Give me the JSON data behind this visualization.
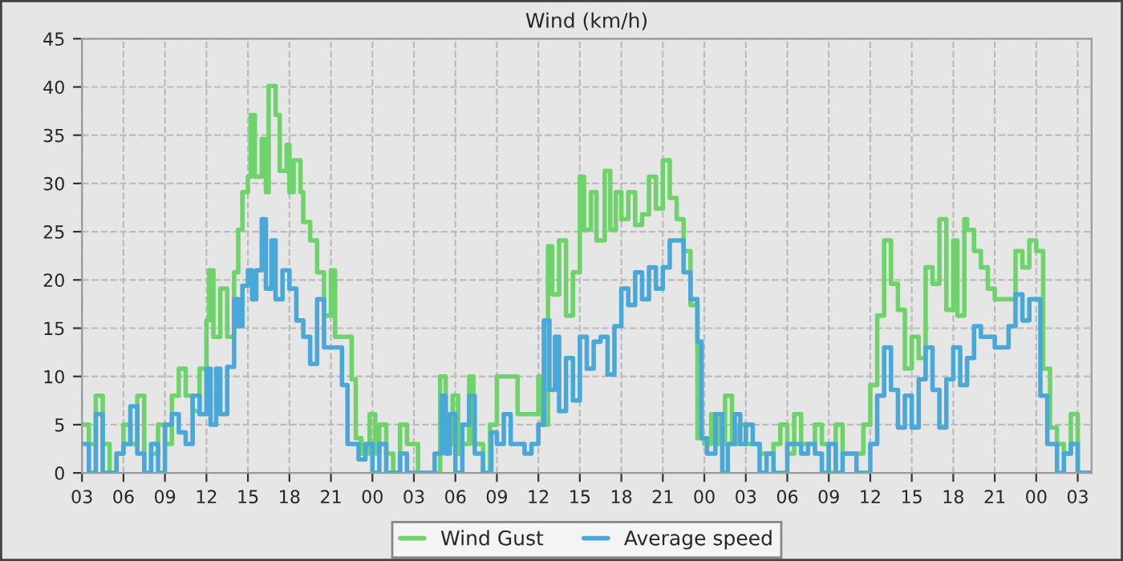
{
  "chart_data": {
    "type": "step",
    "title": "Wind (km/h)",
    "series": [
      {
        "name": "Wind Gust",
        "color": "#6dd36a",
        "x": [
          3,
          3.25,
          3.5,
          4,
          4.5,
          5,
          5.5,
          6,
          6.5,
          7,
          7.5,
          8,
          8.5,
          9,
          9.5,
          10,
          10.5,
          11,
          11.5,
          12,
          12.2,
          12.5,
          13,
          13.5,
          14,
          14.3,
          14.6,
          15,
          15.2,
          15.5,
          16,
          16.3,
          16.5,
          17,
          17.3,
          17.8,
          18,
          18.3,
          18.8,
          19,
          19.5,
          20,
          20.5,
          21,
          21.3,
          22,
          22.5,
          22.8,
          23.2,
          23.8,
          24.2,
          24.5,
          25,
          25.5,
          26,
          26.5,
          27,
          27.3,
          28.5,
          28.9,
          29.3,
          29.8,
          30.2,
          30.5,
          31,
          31.3,
          32,
          32.5,
          33,
          34,
          34.5,
          35.5,
          36,
          36.3,
          36.7,
          37,
          37.5,
          38,
          38.5,
          39,
          39.3,
          39.8,
          40.2,
          40.8,
          41.2,
          41.6,
          42,
          42.5,
          43,
          43.5,
          44,
          44.5,
          45,
          45.5,
          46,
          46.5,
          47,
          47.5,
          48,
          48.5,
          49,
          49.5,
          50,
          50.5,
          51,
          52,
          53,
          53.5,
          54,
          54.5,
          55,
          56,
          56.5,
          57,
          57.5,
          58,
          59,
          59.5,
          60,
          60.5,
          61,
          61.5,
          62,
          62.5,
          63,
          63.5,
          64,
          64.5,
          65,
          65.5,
          66,
          66.3,
          66.8,
          67,
          67.5,
          68,
          68.5,
          69,
          70,
          70.5,
          71,
          71.5,
          72,
          72.5,
          73,
          73.5,
          74,
          74.5,
          75,
          75.5,
          76
        ],
        "values": [
          5,
          5,
          3,
          8,
          3,
          0,
          2,
          5,
          3,
          8,
          0,
          2,
          5,
          3,
          8,
          10.8,
          8,
          6.4,
          10.8,
          15.8,
          21,
          14.1,
          19.1,
          14.1,
          20.8,
          25.2,
          29.1,
          30.7,
          37.1,
          30.7,
          34.6,
          29.1,
          40.1,
          37.1,
          31.3,
          34,
          29.1,
          32.4,
          29.1,
          26,
          24.1,
          20.8,
          16.3,
          21,
          14.1,
          14.1,
          9.7,
          3.6,
          2,
          6.1,
          2,
          5,
          2,
          0,
          5,
          3,
          3,
          0,
          0,
          10,
          3,
          8,
          2,
          3,
          10,
          3,
          0,
          5,
          10,
          10,
          6.1,
          6.1,
          10,
          5,
          23.5,
          18.5,
          24.1,
          16.3,
          20.8,
          30.7,
          25.2,
          29.1,
          24.1,
          31.3,
          25.2,
          29.1,
          26.3,
          29.1,
          25.7,
          26.8,
          30.7,
          27.4,
          32.4,
          28.5,
          26.3,
          23,
          17.4,
          3.6,
          3,
          6.1,
          3,
          8,
          3,
          5,
          3,
          2,
          3,
          5,
          2,
          6.1,
          3,
          5,
          3,
          0,
          5,
          2,
          2,
          5,
          9.1,
          16.3,
          24.1,
          19.6,
          16.9,
          10.8,
          14.1,
          11.9,
          21.3,
          19.6,
          26.3,
          16.9,
          24.1,
          16.3,
          26.3,
          25.2,
          23,
          21.3,
          19.1,
          18,
          18,
          23,
          21.3,
          24.1,
          23,
          10.8,
          4.7,
          3,
          2,
          6.1,
          0,
          0,
          0
        ]
      },
      {
        "name": "Average speed",
        "color": "#4aa8d8",
        "x": [
          3,
          3.5,
          4,
          4.5,
          5.5,
          6,
          6.5,
          7,
          7.5,
          8,
          8.5,
          9,
          9.5,
          10,
          10.5,
          11,
          11.5,
          12,
          12.3,
          12.7,
          13,
          13.5,
          14,
          14.3,
          14.6,
          15,
          15.3,
          15.6,
          16,
          16.3,
          16.7,
          17,
          17.5,
          18,
          18.5,
          19,
          19.5,
          20,
          20.5,
          21,
          21.8,
          22.2,
          23,
          23.5,
          24,
          24.5,
          25,
          26,
          26.5,
          27,
          28.5,
          29,
          29.3,
          29.6,
          30,
          30.5,
          31,
          31.4,
          32,
          32.6,
          33,
          33.5,
          34,
          35,
          35.5,
          36,
          36.4,
          36.8,
          37.2,
          37.5,
          38,
          38.5,
          39,
          39.5,
          40,
          40.5,
          41,
          41.5,
          42,
          42.5,
          43,
          43.5,
          44,
          44.5,
          45,
          45.5,
          46,
          46.5,
          47,
          47.5,
          47.8,
          48.2,
          48.8,
          49.3,
          49.7,
          50.2,
          50.6,
          51,
          51.5,
          52,
          52.5,
          53,
          54,
          55,
          55.5,
          56,
          56.5,
          57,
          57.5,
          58,
          59,
          60,
          60.5,
          61,
          61.5,
          62,
          62.5,
          63,
          63.5,
          64,
          64.5,
          65,
          65.5,
          66,
          66.5,
          67,
          67.5,
          68,
          69,
          70,
          70.5,
          71,
          71.5,
          72.3,
          72.8,
          73.5,
          74,
          74.5,
          75,
          76
        ],
        "values": [
          3,
          0,
          6.1,
          0,
          2,
          3,
          6.9,
          2,
          0,
          3,
          0,
          5,
          6.1,
          4.2,
          3,
          8,
          6.1,
          10.8,
          5,
          10.8,
          6.1,
          11,
          18,
          15.2,
          19.4,
          21,
          18,
          21,
          26.3,
          19.1,
          24.1,
          18,
          21,
          19.1,
          15.8,
          14.1,
          11.3,
          18,
          13,
          13,
          9.1,
          3,
          1.4,
          3,
          0,
          3,
          0,
          2,
          0,
          0,
          2,
          8,
          2,
          6.1,
          0,
          5,
          8,
          2,
          0,
          4.2,
          3,
          6.1,
          3,
          2,
          3,
          5,
          15.8,
          8.6,
          14.1,
          6.4,
          11.9,
          7.5,
          14.1,
          10.8,
          13.6,
          14.1,
          10.2,
          15.2,
          19.1,
          17.4,
          20.8,
          18,
          21.3,
          19.1,
          21.3,
          24.1,
          24.1,
          20.8,
          18,
          13.6,
          3.6,
          2,
          6.1,
          0,
          3,
          6.1,
          3,
          5,
          3,
          0,
          2,
          0,
          3,
          2,
          3,
          2,
          0,
          3,
          0,
          2,
          0,
          3,
          8,
          13,
          8.6,
          4.7,
          8,
          4.7,
          9.7,
          13,
          8.6,
          4.7,
          9.7,
          13,
          9.1,
          11.9,
          15.2,
          14.1,
          13,
          15.2,
          18.5,
          15.8,
          18,
          8,
          3,
          0,
          2,
          3,
          0,
          0
        ]
      }
    ],
    "xlim": [
      3,
      76
    ],
    "ylim": [
      0,
      45
    ],
    "xticks": [
      {
        "value": 3,
        "label": "03"
      },
      {
        "value": 6,
        "label": "06"
      },
      {
        "value": 9,
        "label": "09"
      },
      {
        "value": 12,
        "label": "12"
      },
      {
        "value": 15,
        "label": "15"
      },
      {
        "value": 18,
        "label": "18"
      },
      {
        "value": 21,
        "label": "21"
      },
      {
        "value": 24,
        "label": "00"
      },
      {
        "value": 27,
        "label": "03"
      },
      {
        "value": 30,
        "label": "06"
      },
      {
        "value": 33,
        "label": "09"
      },
      {
        "value": 36,
        "label": "12"
      },
      {
        "value": 39,
        "label": "15"
      },
      {
        "value": 42,
        "label": "18"
      },
      {
        "value": 45,
        "label": "21"
      },
      {
        "value": 48,
        "label": "00"
      },
      {
        "value": 51,
        "label": "03"
      },
      {
        "value": 54,
        "label": "06"
      },
      {
        "value": 57,
        "label": "09"
      },
      {
        "value": 60,
        "label": "12"
      },
      {
        "value": 63,
        "label": "15"
      },
      {
        "value": 66,
        "label": "18"
      },
      {
        "value": 69,
        "label": "21"
      },
      {
        "value": 72,
        "label": "00"
      },
      {
        "value": 75,
        "label": "03"
      }
    ],
    "yticks": [
      0,
      5,
      10,
      15,
      20,
      25,
      30,
      35,
      40,
      45
    ],
    "grid": true,
    "legend": "bottom",
    "line_style": "solid",
    "marker": "none"
  }
}
